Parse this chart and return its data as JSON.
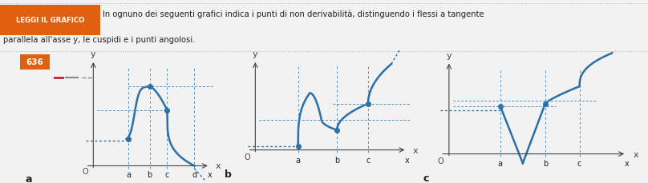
{
  "bg_color": "#f2f2f2",
  "white_area": "#ffffff",
  "curve_color": "#2a6fa8",
  "dot_color": "#2a6fa8",
  "dash_color": "#4a90c4",
  "axis_color": "#444444",
  "text_color": "#222222",
  "orange_bg": "#e06010",
  "label_color": "#333333",
  "title_text": "LEGGI IL GRAFICO",
  "subtitle1": "In ognuno dei seguenti grafici indica i punti di non derivabilità, distinguendo i flessi a tangente",
  "subtitle2": "parallela all'asse y, le cuspidi e i punti angolosi.",
  "number": "636",
  "border_dot_color": "#c0b090"
}
